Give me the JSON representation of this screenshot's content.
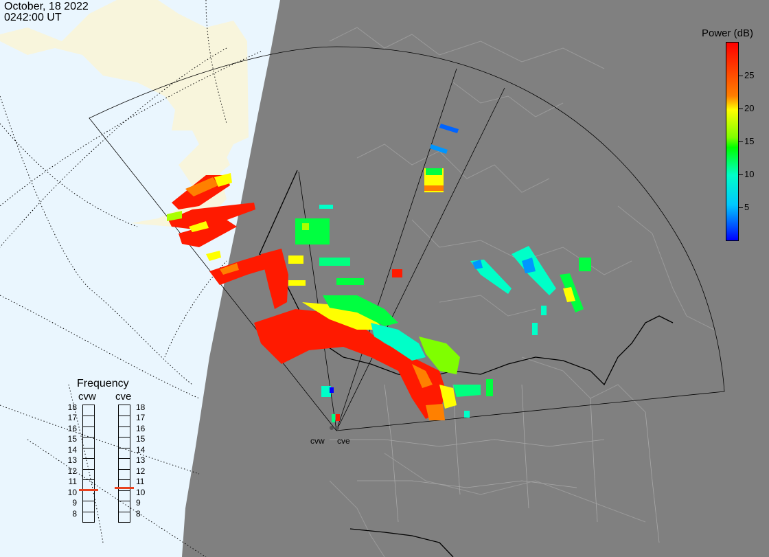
{
  "header": {
    "date": "October, 18 2022",
    "time": "0242:00 UT"
  },
  "colorbar": {
    "title": "Power (dB)",
    "min": 0,
    "max": 30,
    "ticks": [
      {
        "value": 25,
        "label": "25"
      },
      {
        "value": 20,
        "label": "20"
      },
      {
        "value": 15,
        "label": "15"
      },
      {
        "value": 10,
        "label": "10"
      },
      {
        "value": 5,
        "label": "5"
      }
    ]
  },
  "frequency": {
    "title": "Frequency",
    "scale": [
      "18",
      "17",
      "16",
      "15",
      "14",
      "13",
      "12",
      "11",
      "10",
      "9",
      "8"
    ],
    "radars": [
      {
        "name": "cvw",
        "freq_mhz": 10.5
      },
      {
        "name": "cve",
        "freq_mhz": 10.7
      }
    ]
  },
  "sites": [
    {
      "name": "cvw"
    },
    {
      "name": "cve"
    }
  ],
  "colors": {
    "land_gray": "#808080",
    "ocean_blue": "#eaf6fe",
    "land_cream": "#f8f5dc",
    "freq_marker": "#e8411e"
  }
}
